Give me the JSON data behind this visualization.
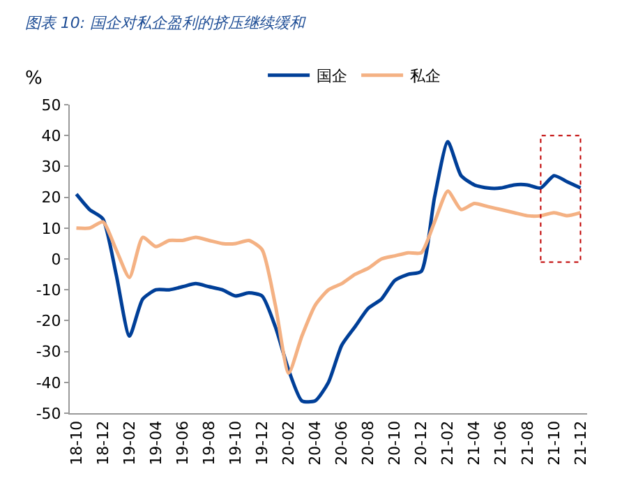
{
  "chart_data": {
    "type": "line",
    "title": "图表 10: 国企对私企盈利的挤压继续缓和",
    "ylabel": "%",
    "categories": [
      "18-10",
      null,
      "18-12",
      null,
      "19-02",
      null,
      "19-04",
      null,
      "19-06",
      null,
      "19-08",
      null,
      "19-10",
      null,
      "19-12",
      null,
      "20-02",
      null,
      "20-04",
      null,
      "20-06",
      null,
      "20-08",
      null,
      "20-10",
      null,
      "20-12",
      null,
      "21-02",
      null,
      "21-04",
      null,
      "21-06",
      null,
      "21-08",
      null,
      "21-10",
      null,
      "21-12"
    ],
    "series": [
      {
        "name": "国企",
        "color": "#003f98",
        "values": [
          21,
          16,
          13,
          -5,
          -25,
          -13,
          -10,
          -10,
          -9,
          -8,
          -9,
          -10,
          -12,
          -11,
          -12,
          -22,
          -36,
          -46,
          -46,
          -40,
          -28,
          -22,
          -16,
          -13,
          -7,
          -5,
          -4,
          20,
          38,
          27,
          24,
          23,
          23,
          24,
          24,
          23,
          27,
          25,
          23
        ]
      },
      {
        "name": "私企",
        "color": "#f4b183",
        "values": [
          10,
          10,
          12,
          3,
          -6,
          7,
          4,
          6,
          6,
          7,
          6,
          5,
          5,
          6,
          3,
          -15,
          -37,
          -25,
          -15,
          -10,
          -8,
          -5,
          -3,
          0,
          1,
          2,
          2,
          12,
          22,
          16,
          18,
          17,
          16,
          15,
          14,
          14,
          15,
          14,
          15
        ]
      }
    ],
    "ylim": [
      -50,
      50
    ],
    "yticks": [
      -50,
      -40,
      -30,
      -20,
      -10,
      0,
      10,
      20,
      30,
      40,
      50
    ],
    "legend": "top",
    "marker": "none",
    "line_style": "solid"
  }
}
